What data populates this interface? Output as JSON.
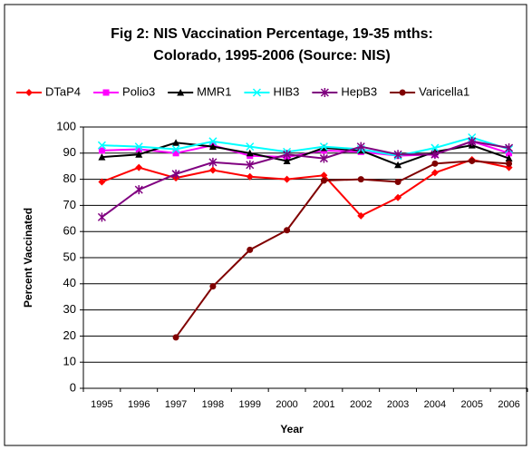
{
  "chart_data": {
    "type": "line",
    "title": [
      "Fig 2: NIS Vaccination Percentage, 19-35 mths:",
      "Colorado, 1995-2006 (Source: NIS)"
    ],
    "x_label": "Year",
    "y_label": "Percent Vaccinated",
    "categories": [
      "1995",
      "1996",
      "1997",
      "1998",
      "1999",
      "2000",
      "2001",
      "2002",
      "2003",
      "2004",
      "2005",
      "2006"
    ],
    "series": [
      {
        "name": "DTaP4",
        "color": "#ff0000",
        "marker": "diamond",
        "values": [
          79,
          84.5,
          80.5,
          83.5,
          81,
          80,
          81.5,
          66,
          73,
          82.5,
          87.5,
          84.5
        ]
      },
      {
        "name": "Polio3",
        "color": "#ff00ff",
        "marker": "square",
        "values": [
          91,
          91.5,
          90,
          93,
          89,
          88.5,
          91,
          90.5,
          89,
          89.5,
          94.5,
          90
        ]
      },
      {
        "name": "MMR1",
        "color": "#000000",
        "marker": "triangle",
        "values": [
          88.5,
          89.5,
          94,
          92.5,
          90,
          87,
          92,
          91,
          85.5,
          90.5,
          93,
          88
        ]
      },
      {
        "name": "HIB3",
        "color": "#00ffff",
        "marker": "x",
        "values": [
          93,
          92.5,
          91.5,
          94.5,
          92.5,
          90.5,
          92.5,
          91.5,
          89,
          92,
          96,
          91.5
        ]
      },
      {
        "name": "HepB3",
        "color": "#800080",
        "marker": "star",
        "values": [
          65.5,
          76,
          82,
          86.5,
          85.5,
          89.5,
          88,
          92.5,
          89.5,
          89.5,
          94.5,
          92
        ]
      },
      {
        "name": "Varicella1",
        "color": "#800000",
        "marker": "circle",
        "values": [
          null,
          null,
          19.5,
          39,
          53,
          60.5,
          79.5,
          80,
          79,
          86,
          87,
          86
        ]
      }
    ],
    "ylim": [
      0,
      100
    ],
    "yticks": [
      0,
      10,
      20,
      30,
      40,
      50,
      60,
      70,
      80,
      90,
      100
    ],
    "grid": true,
    "legend": "top"
  }
}
